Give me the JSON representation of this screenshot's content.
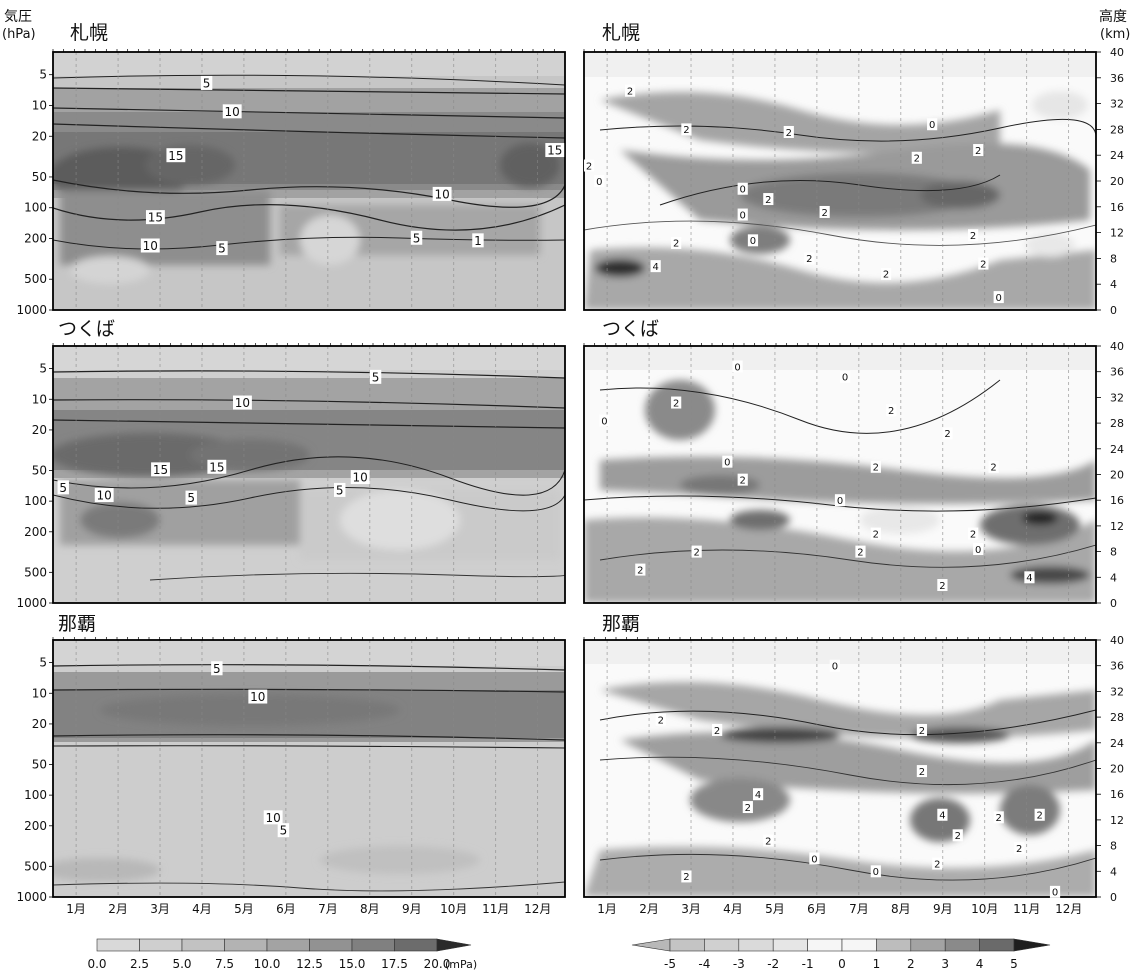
{
  "left_axis": {
    "label_line1": "気圧",
    "label_line2": "(hPa)"
  },
  "right_axis": {
    "label_line1": "高度",
    "label_line2": "(km)"
  },
  "ozone_colorbar": {
    "ticks": [
      "0.0",
      "2.5",
      "5.0",
      "7.5",
      "10.0",
      "12.5",
      "15.0",
      "17.5",
      "20.0"
    ],
    "unit": "(mPa)"
  },
  "anomaly_colorbar": {
    "ticks": [
      "-5",
      "-4",
      "-3",
      "-2",
      "-1",
      "0",
      "1",
      "2",
      "3",
      "4",
      "5"
    ]
  },
  "chart_data": [
    {
      "type": "heatmap",
      "title": "札幌",
      "variable": "ozone partial pressure (mPa)",
      "x_categories": [
        "1月",
        "2月",
        "3月",
        "4月",
        "5月",
        "6月",
        "7月",
        "8月",
        "9月",
        "10月",
        "11月",
        "12月"
      ],
      "y_ticks": [
        "5",
        "10",
        "20",
        "50",
        "100",
        "200",
        "500",
        "1000"
      ],
      "y_scale": "log",
      "ylim": [
        1000,
        3
      ],
      "contour_labels": [
        "5",
        "10",
        "15",
        "10",
        "15",
        "10",
        "5",
        "5",
        "15",
        "1"
      ]
    },
    {
      "type": "heatmap",
      "title": "札幌",
      "variable": "ozone anomaly",
      "x_categories": [
        "1月",
        "2月",
        "3月",
        "4月",
        "5月",
        "6月",
        "7月",
        "8月",
        "9月",
        "10月",
        "11月",
        "12月"
      ],
      "y_ticks": [
        "0",
        "4",
        "8",
        "12",
        "16",
        "20",
        "24",
        "28",
        "32",
        "36",
        "40"
      ],
      "ylim": [
        0,
        40
      ],
      "contour_labels": [
        "2",
        "2",
        "2",
        "2",
        "0",
        "2",
        "0",
        "0",
        "2",
        "2",
        "2",
        "0",
        "2",
        "2",
        "4",
        "2",
        "2",
        "2",
        "0",
        "0"
      ]
    },
    {
      "type": "heatmap",
      "title": "つくば",
      "variable": "ozone partial pressure (mPa)",
      "x_categories": [
        "1月",
        "2月",
        "3月",
        "4月",
        "5月",
        "6月",
        "7月",
        "8月",
        "9月",
        "10月",
        "11月",
        "12月"
      ],
      "y_ticks": [
        "5",
        "10",
        "20",
        "50",
        "100",
        "200",
        "500",
        "1000"
      ],
      "y_scale": "log",
      "ylim": [
        1000,
        3
      ],
      "contour_labels": [
        "5",
        "10",
        "15",
        "15",
        "10",
        "5",
        "10",
        "5",
        "5"
      ]
    },
    {
      "type": "heatmap",
      "title": "つくば",
      "variable": "ozone anomaly",
      "x_categories": [
        "1月",
        "2月",
        "3月",
        "4月",
        "5月",
        "6月",
        "7月",
        "8月",
        "9月",
        "10月",
        "11月",
        "12月"
      ],
      "y_ticks": [
        "0",
        "4",
        "8",
        "12",
        "16",
        "20",
        "24",
        "28",
        "32",
        "36",
        "40"
      ],
      "ylim": [
        0,
        40
      ],
      "contour_labels": [
        "0",
        "0",
        "2",
        "0",
        "0",
        "2",
        "2",
        "2",
        "2",
        "2",
        "2",
        "2",
        "2",
        "4",
        "2",
        "0",
        "2",
        "2",
        "0"
      ]
    },
    {
      "type": "heatmap",
      "title": "那覇",
      "variable": "ozone partial pressure (mPa)",
      "x_categories": [
        "1月",
        "2月",
        "3月",
        "4月",
        "5月",
        "6月",
        "7月",
        "8月",
        "9月",
        "10月",
        "11月",
        "12月"
      ],
      "y_ticks": [
        "5",
        "10",
        "20",
        "50",
        "100",
        "200",
        "500",
        "1000"
      ],
      "y_scale": "log",
      "ylim": [
        1000,
        3
      ],
      "contour_labels": [
        "5",
        "10",
        "10",
        "5"
      ]
    },
    {
      "type": "heatmap",
      "title": "那覇",
      "variable": "ozone anomaly",
      "x_categories": [
        "1月",
        "2月",
        "3月",
        "4月",
        "5月",
        "6月",
        "7月",
        "8月",
        "9月",
        "10月",
        "11月",
        "12月"
      ],
      "y_ticks": [
        "0",
        "4",
        "8",
        "12",
        "16",
        "20",
        "24",
        "28",
        "32",
        "36",
        "40"
      ],
      "ylim": [
        0,
        40
      ],
      "contour_labels": [
        "0",
        "2",
        "2",
        "2",
        "2",
        "4",
        "2",
        "4",
        "2",
        "2",
        "2",
        "2",
        "2",
        "2",
        "2",
        "0",
        "0",
        "0"
      ]
    }
  ]
}
